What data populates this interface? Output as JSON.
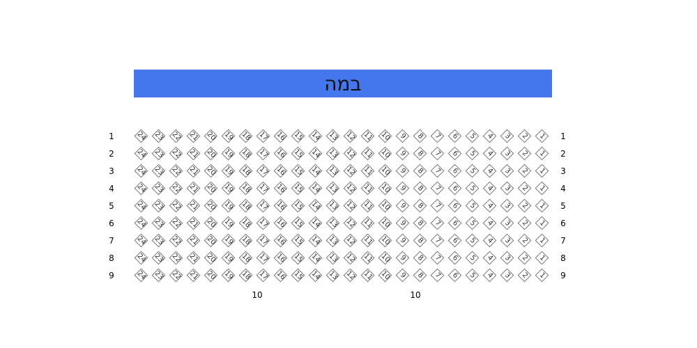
{
  "stage": {
    "label": "במה",
    "color": "#4477ee"
  },
  "rows": [
    "1",
    "2",
    "3",
    "4",
    "5",
    "6",
    "7",
    "8",
    "9"
  ],
  "seats": [
    "24",
    "23",
    "22",
    "21",
    "20",
    "19",
    "18",
    "17",
    "16",
    "15",
    "14",
    "13",
    "12",
    "11",
    "10",
    "9",
    "8",
    "7",
    "6",
    "5",
    "4",
    "3",
    "2",
    "1"
  ],
  "markers": [
    "10",
    "10"
  ]
}
